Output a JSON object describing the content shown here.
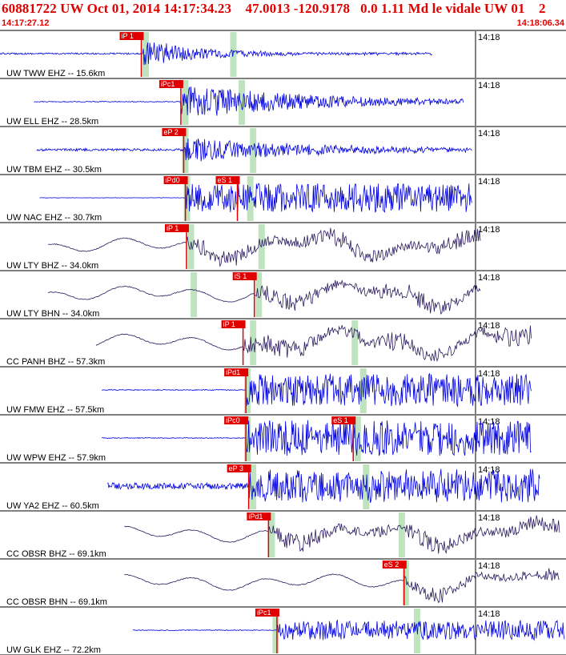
{
  "header": {
    "title": "60881722 UW Oct 01, 2014 14:17:34.23    47.0013 -120.9178   0.0 1.11 Md le vidale UW 01    2",
    "start_time": "14:17:27.12",
    "end_time": "14:18:06.34"
  },
  "colors": {
    "accent": "#e00000",
    "trace_blue": "#0000e0",
    "trace_purple": "#2a1a5e",
    "pick_red": "#e00000",
    "window_green": "#b8e0b8",
    "axis": "#000000"
  },
  "minute_tick_label": "14:18",
  "channels": [
    {
      "label": "UW TWW EHZ -- 15.6km",
      "color": "blue",
      "pick": "iP 1",
      "pick2": null,
      "pickTime": 0.25,
      "s2Time": null,
      "greens": [
        0.255,
        0.41
      ],
      "start": 0.0,
      "end": 0.765,
      "amp": 18,
      "noise": 2,
      "style": "hf",
      "decay": "fast"
    },
    {
      "label": "UW ELL EHZ -- 28.5km",
      "color": "blue",
      "pick": "iPc1",
      "pick2": null,
      "pickTime": 0.32,
      "s2Time": null,
      "greens": [
        0.325,
        0.425
      ],
      "start": 0.06,
      "end": 0.82,
      "amp": 22,
      "noise": 1,
      "style": "hf",
      "decay": "slow"
    },
    {
      "label": "UW TBM EHZ -- 30.5km",
      "color": "blue",
      "pick": "eP 2",
      "pick2": null,
      "pickTime": 0.325,
      "s2Time": null,
      "greens": [
        0.325,
        0.445
      ],
      "start": 0.065,
      "end": 0.835,
      "amp": 16,
      "noise": 3,
      "style": "hf",
      "decay": "slow"
    },
    {
      "label": "UW NAC EHZ -- 30.7km",
      "color": "blue",
      "pick": "iPd0",
      "pick2": "eS 1",
      "pickTime": 0.328,
      "s2Time": 0.42,
      "greens": [
        0.328,
        0.44
      ],
      "start": 0.07,
      "end": 0.835,
      "amp": 18,
      "noise": 0.5,
      "style": "hf",
      "decay": "none"
    },
    {
      "label": "UW LTY BHZ -- 34.0km",
      "color": "purple",
      "pick": "iP 1",
      "pick2": null,
      "pickTime": 0.33,
      "s2Time": null,
      "greens": [
        0.335,
        0.46
      ],
      "start": 0.085,
      "end": 0.85,
      "amp": 14,
      "noise": 0,
      "style": "lf",
      "decay": "none"
    },
    {
      "label": "UW LTY BHN -- 34.0km",
      "color": "purple",
      "pick": "iS 1",
      "pick2": null,
      "pickTime": 0.45,
      "s2Time": null,
      "greens": [
        0.34,
        0.455
      ],
      "start": 0.085,
      "end": 0.85,
      "amp": 14,
      "noise": 0,
      "style": "lf",
      "decay": "none"
    },
    {
      "label": "CC PANH BHZ -- 57.3km",
      "color": "purple",
      "pick": "iP 1",
      "pick2": null,
      "pickTime": 0.43,
      "s2Time": null,
      "greens": [
        0.445,
        0.625
      ],
      "start": 0.17,
      "end": 0.94,
      "amp": 16,
      "noise": 0,
      "style": "lf",
      "decay": "none"
    },
    {
      "label": "UW FMW EHZ -- 57.5km",
      "color": "blue",
      "pick": "iPd1",
      "pick2": null,
      "pickTime": 0.435,
      "s2Time": null,
      "greens": [
        0.435,
        0.64
      ],
      "start": 0.18,
      "end": 0.94,
      "amp": 20,
      "noise": 1,
      "style": "hf",
      "decay": "none"
    },
    {
      "label": "UW WPW EHZ -- 57.9km",
      "color": "blue",
      "pick": "iPc0",
      "pick2": "eS 1",
      "pickTime": 0.435,
      "s2Time": 0.625,
      "greens": [
        0.435,
        0.63
      ],
      "start": 0.18,
      "end": 0.94,
      "amp": 22,
      "noise": 1,
      "style": "hf",
      "decay": "none"
    },
    {
      "label": "UW YA2 EHZ -- 60.5km",
      "color": "blue",
      "pick": "eP 3",
      "pickTime": 0.44,
      "pick2": null,
      "s2Time": null,
      "greens": [
        0.445,
        0.645
      ],
      "start": 0.19,
      "end": 0.955,
      "amp": 18,
      "noise": 8,
      "style": "hf",
      "decay": "none"
    },
    {
      "label": "CC OBSR BHZ -- 69.1km",
      "color": "purple",
      "pick": "iPd1",
      "pick2": null,
      "pickTime": 0.475,
      "s2Time": null,
      "greens": [
        0.478,
        0.708
      ],
      "start": 0.22,
      "end": 0.99,
      "amp": 14,
      "noise": 0,
      "style": "lf",
      "decay": "none"
    },
    {
      "label": "CC OBSR BHN -- 69.1km",
      "color": "purple",
      "pick": "eS 2",
      "pick2": null,
      "pickTime": 0.715,
      "s2Time": null,
      "greens": [
        0.715
      ],
      "start": 0.22,
      "end": 0.99,
      "amp": 12,
      "noise": 0,
      "style": "lf",
      "decay": "none"
    },
    {
      "label": "UW GLK EHZ -- 72.2km",
      "color": "blue",
      "pick": "iPc1",
      "pick2": null,
      "pickTime": 0.49,
      "s2Time": null,
      "greens": [
        0.485,
        0.735
      ],
      "start": 0.235,
      "end": 1.0,
      "amp": 12,
      "noise": 1,
      "style": "hf",
      "decay": "none"
    }
  ]
}
